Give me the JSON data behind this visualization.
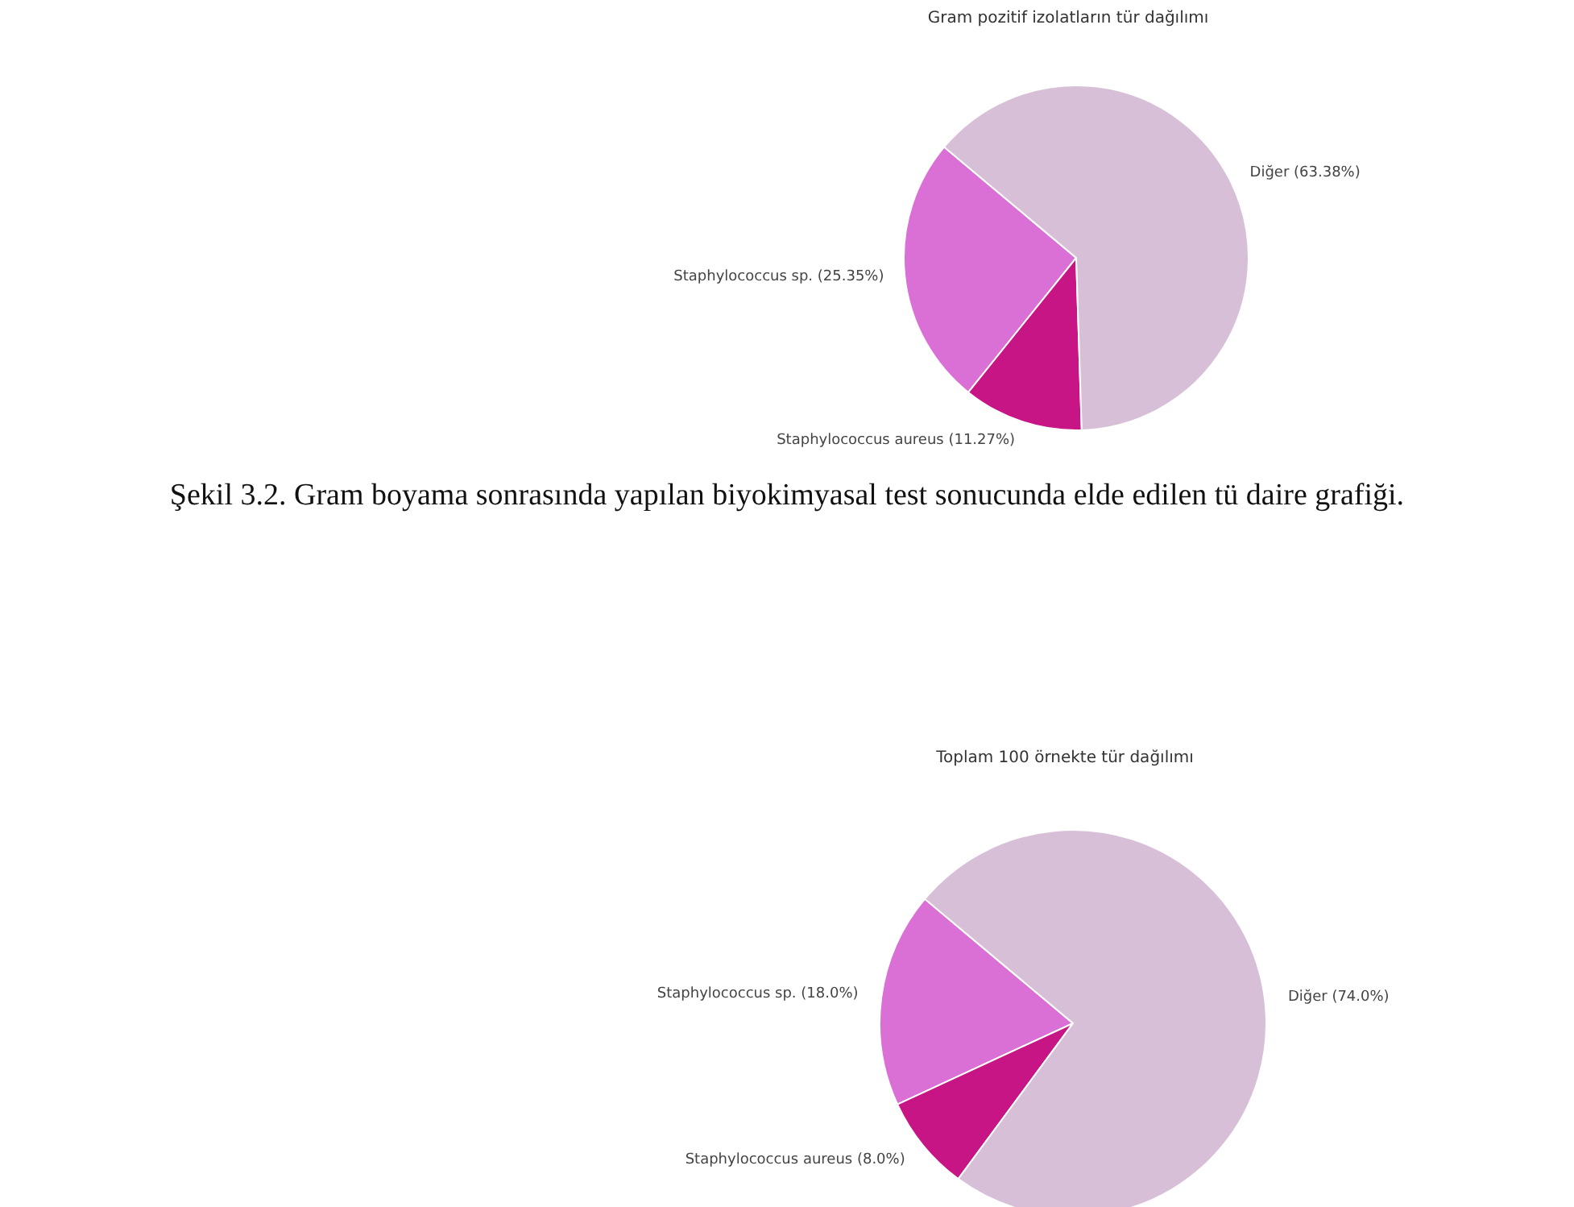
{
  "chart_data": [
    {
      "type": "pie",
      "title": "Gram pozitif izolatların tür dağılımı",
      "categories": [
        "Staphylococcus sp.",
        "Staphylococcus aureus",
        "Diğer"
      ],
      "values": [
        25.35,
        11.27,
        63.38
      ],
      "colors": [
        "#da70d6",
        "#c71585",
        "#d8bfd8"
      ],
      "value_labels": [
        "(25.35%)",
        "(11.27%)",
        "(63.38%)"
      ],
      "annotations": [
        "Şekil 3.2. Gram boyama sonrasında yapılan biyokimyasal test sonucunda elde edilen tü daire grafiği."
      ]
    },
    {
      "type": "pie",
      "title": "Toplam 100 örnekte tür dağılımı",
      "categories": [
        "Staphylococcus sp.",
        "Staphylococcus aureus",
        "Diğer"
      ],
      "values": [
        18.0,
        8.0,
        74.0
      ],
      "colors": [
        "#da70d6",
        "#c71585",
        "#d8bfd8"
      ],
      "value_labels": [
        "(18.0%)",
        "(8.0%)",
        "(74.0%)"
      ]
    }
  ]
}
